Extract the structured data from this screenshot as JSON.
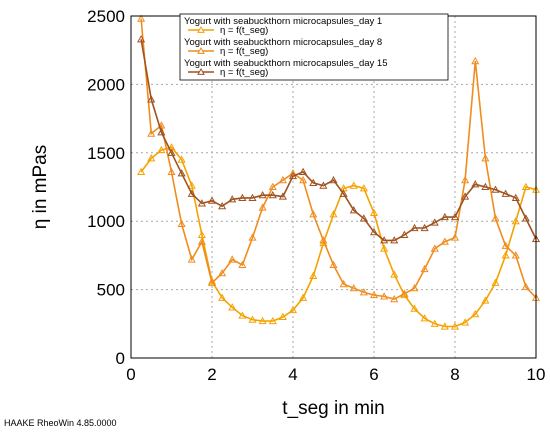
{
  "footer": "HAAKE RheoWin 4.85.0000",
  "chart_data": {
    "type": "line",
    "xlabel": "t_seg in min",
    "ylabel": "η in mPas",
    "xlim": [
      0,
      10
    ],
    "ylim": [
      0,
      2500
    ],
    "xticks": [
      "0",
      "2",
      "4",
      "6",
      "8",
      "10"
    ],
    "yticks": [
      "0",
      "500",
      "1000",
      "1500",
      "2000",
      "2500"
    ],
    "grid": true,
    "legend_position": "top-right",
    "series": [
      {
        "name": "Yogurt with seabuckthorn microcapsules_day 1",
        "line_label": "η = f(t_seg)",
        "color": "#f5a200",
        "x": [
          0.25,
          0.5,
          0.75,
          1.0,
          1.25,
          1.5,
          1.75,
          2.0,
          2.25,
          2.5,
          2.75,
          3.0,
          3.25,
          3.5,
          3.75,
          4.0,
          4.25,
          4.5,
          4.75,
          5.0,
          5.25,
          5.5,
          5.75,
          6.0,
          6.25,
          6.5,
          6.75,
          7.0,
          7.25,
          7.5,
          7.75,
          8.0,
          8.25,
          8.5,
          8.75,
          9.0,
          9.25,
          9.5,
          9.75,
          10.0
        ],
        "values": [
          1360,
          1460,
          1520,
          1540,
          1450,
          1260,
          900,
          560,
          440,
          370,
          310,
          280,
          270,
          270,
          300,
          350,
          440,
          600,
          840,
          1050,
          1240,
          1260,
          1240,
          1060,
          800,
          610,
          460,
          360,
          290,
          250,
          230,
          230,
          260,
          320,
          420,
          550,
          750,
          1000,
          1250,
          1230
        ]
      },
      {
        "name": "Yogurt with seabuckthorn microcapsules_day 8",
        "line_label": "η = f(t_seg)",
        "color": "#f08c1e",
        "x": [
          0.25,
          0.5,
          0.75,
          1.0,
          1.25,
          1.5,
          1.75,
          2.0,
          2.25,
          2.5,
          2.75,
          3.0,
          3.25,
          3.5,
          3.75,
          4.0,
          4.25,
          4.5,
          4.75,
          5.0,
          5.25,
          5.5,
          5.75,
          6.0,
          6.25,
          6.5,
          6.75,
          7.0,
          7.25,
          7.5,
          7.75,
          8.0,
          8.25,
          8.5,
          8.75,
          9.0,
          9.25,
          9.5,
          9.75,
          10.0
        ],
        "values": [
          2480,
          1640,
          1700,
          1360,
          980,
          720,
          850,
          550,
          620,
          720,
          680,
          880,
          1100,
          1250,
          1300,
          1350,
          1300,
          1050,
          860,
          680,
          540,
          510,
          480,
          460,
          450,
          430,
          470,
          510,
          650,
          800,
          850,
          880,
          1300,
          2170,
          1460,
          1020,
          820,
          750,
          520,
          440
        ]
      },
      {
        "name": "Yogurt with seabuckthorn microcapsules_day 15",
        "line_label": "η = f(t_seg)",
        "color": "#a0521e",
        "x": [
          0.25,
          0.5,
          0.75,
          1.0,
          1.25,
          1.5,
          1.75,
          2.0,
          2.25,
          2.5,
          2.75,
          3.0,
          3.25,
          3.5,
          3.75,
          4.0,
          4.25,
          4.5,
          4.75,
          5.0,
          5.25,
          5.5,
          5.75,
          6.0,
          6.25,
          6.5,
          6.75,
          7.0,
          7.25,
          7.5,
          7.75,
          8.0,
          8.25,
          8.5,
          8.75,
          9.0,
          9.25,
          9.5,
          9.75,
          10.0
        ],
        "values": [
          2330,
          1890,
          1650,
          1500,
          1350,
          1200,
          1130,
          1150,
          1110,
          1160,
          1170,
          1170,
          1190,
          1190,
          1180,
          1330,
          1360,
          1280,
          1260,
          1300,
          1200,
          1080,
          1020,
          920,
          860,
          860,
          900,
          950,
          950,
          990,
          1030,
          1030,
          1180,
          1270,
          1250,
          1230,
          1200,
          1170,
          1020,
          870
        ]
      }
    ]
  }
}
